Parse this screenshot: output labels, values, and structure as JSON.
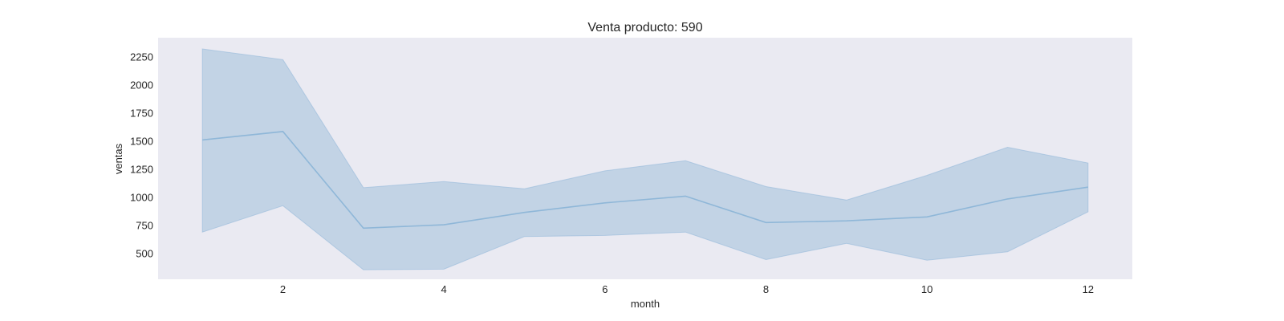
{
  "chart_data": {
    "type": "line",
    "title": "Venta producto: 590",
    "xlabel": "month",
    "ylabel": "ventas",
    "x": [
      1,
      2,
      3,
      4,
      5,
      6,
      7,
      8,
      9,
      10,
      11,
      12
    ],
    "series": [
      {
        "values": [
          1510,
          1585,
          725,
          755,
          865,
          950,
          1010,
          775,
          790,
          825,
          985,
          1090
        ],
        "ci_upper": [
          2320,
          2225,
          1085,
          1140,
          1075,
          1235,
          1325,
          1095,
          975,
          1195,
          1445,
          1305
        ],
        "ci_lower": [
          690,
          925,
          355,
          360,
          650,
          660,
          690,
          445,
          590,
          440,
          515,
          870
        ]
      }
    ],
    "xticks": [
      2,
      4,
      6,
      8,
      10,
      12
    ],
    "yticks": [
      500,
      750,
      1000,
      1250,
      1500,
      1750,
      2000,
      2250
    ],
    "xlim": [
      0.45,
      12.55
    ],
    "ylim": [
      270,
      2420
    ],
    "grid": false,
    "colors": {
      "plot_background": "#eaeaf2",
      "line": "#8fb7d8",
      "band": "#c2d3e5"
    }
  }
}
